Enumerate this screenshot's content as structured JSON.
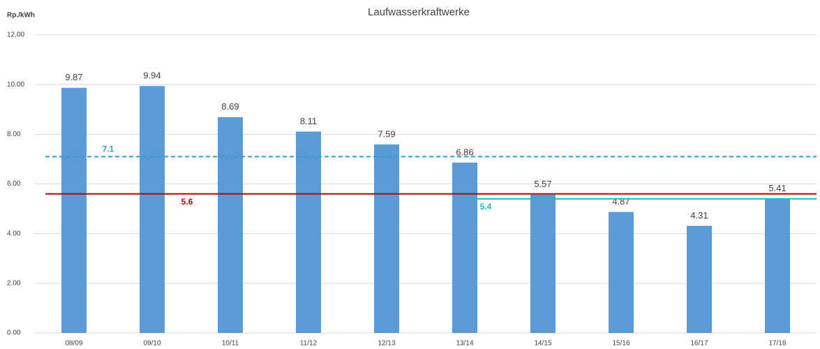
{
  "chart_data": {
    "type": "bar",
    "title": "Laufwasserkraftwerke",
    "y_label": "Rp./kWh",
    "categories": [
      "08/09",
      "09/10",
      "10/11",
      "11/12",
      "12/13",
      "13/14",
      "14/15",
      "15/16",
      "16/17",
      "17/18"
    ],
    "values": [
      9.87,
      9.94,
      8.69,
      8.11,
      7.59,
      6.86,
      5.57,
      4.87,
      4.31,
      5.41
    ],
    "color": "#5b9bd5",
    "ylim": [
      0,
      12
    ],
    "yticks": [
      {
        "value": 0,
        "label": "0.00"
      },
      {
        "value": 2,
        "label": "2.00"
      },
      {
        "value": 4,
        "label": "4.00"
      },
      {
        "value": 6,
        "label": "6.00"
      },
      {
        "value": 8,
        "label": "8.00"
      },
      {
        "value": 10,
        "label": "10.00"
      },
      {
        "value": 12,
        "label": "12.00"
      }
    ],
    "grid": true,
    "reference_lines": [
      {
        "value": 7.1,
        "color": "#2e9bd6",
        "style": "dashed"
      },
      {
        "value": 5.6,
        "color": "#c00000",
        "style": "solid"
      },
      {
        "value": 5.4,
        "color": "#22b8d0",
        "style": "solid",
        "x_start": "13/14"
      }
    ]
  }
}
